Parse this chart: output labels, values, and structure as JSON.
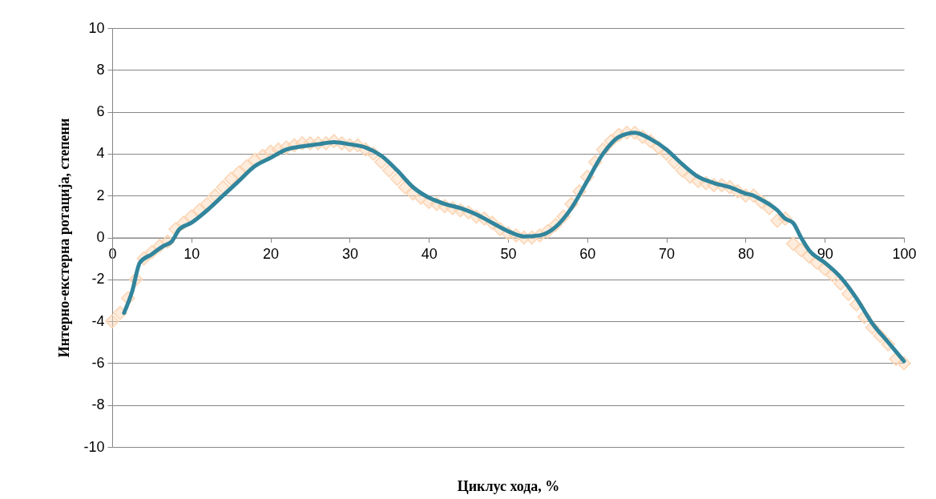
{
  "chart_data": {
    "type": "line",
    "xlabel": "Циклус хода, %",
    "ylabel": "Интерно-екстерна ротација, степени",
    "xlim": [
      0,
      100
    ],
    "xticks": [
      0,
      10,
      20,
      30,
      40,
      50,
      60,
      70,
      80,
      90,
      100
    ],
    "ylim": [
      -10,
      10
    ],
    "yticks": [
      -10,
      -8,
      -6,
      -4,
      -2,
      0,
      2,
      4,
      6,
      8,
      10
    ],
    "grid": "y",
    "marker": "diamond",
    "series": [
      {
        "type": "scatter",
        "color": "#fcd5b4",
        "x": [
          0,
          1,
          2,
          3,
          4,
          5,
          6,
          7,
          8,
          9,
          10,
          11,
          12,
          13,
          14,
          15,
          16,
          17,
          18,
          19,
          20,
          21,
          22,
          23,
          24,
          25,
          26,
          27,
          28,
          29,
          30,
          31,
          32,
          33,
          34,
          35,
          36,
          37,
          38,
          39,
          40,
          41,
          42,
          43,
          44,
          45,
          46,
          47,
          48,
          49,
          50,
          51,
          52,
          53,
          54,
          55,
          56,
          57,
          58,
          59,
          60,
          61,
          62,
          63,
          64,
          65,
          66,
          67,
          68,
          69,
          70,
          71,
          72,
          73,
          74,
          75,
          76,
          77,
          78,
          79,
          80,
          81,
          82,
          83,
          84,
          85,
          86,
          87,
          88,
          89,
          90,
          91,
          92,
          93,
          94,
          95,
          96,
          97,
          98,
          99,
          100
        ],
        "values": [
          -4.0,
          -3.6,
          -2.9,
          -2.0,
          -1.0,
          -0.7,
          -0.4,
          -0.2,
          0.4,
          0.7,
          1.0,
          1.3,
          1.6,
          2.0,
          2.4,
          2.8,
          3.1,
          3.4,
          3.7,
          3.9,
          4.1,
          4.2,
          4.3,
          4.4,
          4.5,
          4.5,
          4.5,
          4.5,
          4.6,
          4.5,
          4.4,
          4.4,
          4.2,
          4.0,
          3.6,
          3.2,
          2.8,
          2.4,
          2.1,
          1.9,
          1.7,
          1.6,
          1.5,
          1.4,
          1.3,
          1.2,
          1.0,
          0.9,
          0.7,
          0.4,
          0.2,
          0.1,
          0.0,
          0.0,
          0.1,
          0.3,
          0.6,
          1.0,
          1.6,
          2.2,
          2.9,
          3.6,
          4.2,
          4.6,
          4.9,
          5.0,
          5.0,
          4.8,
          4.6,
          4.3,
          4.0,
          3.6,
          3.2,
          2.9,
          2.7,
          2.6,
          2.5,
          2.5,
          2.4,
          2.2,
          2.0,
          2.0,
          1.7,
          1.4,
          0.8,
          0.9,
          -0.3,
          -0.6,
          -0.9,
          -1.2,
          -1.5,
          -1.8,
          -2.2,
          -2.7,
          -3.2,
          -3.8,
          -4.3,
          -4.7,
          -5.1,
          -5.8,
          -6.0
        ]
      },
      {
        "marker": "none",
        "color": "#31859c",
        "x": [
          1.5,
          2.5,
          3.5,
          5,
          6.5,
          7.5,
          8.5,
          10,
          12,
          14,
          16,
          18,
          20,
          22,
          24,
          26,
          28,
          30,
          32,
          34,
          36,
          38,
          40,
          42,
          44,
          46,
          48,
          50,
          52,
          54,
          56,
          58,
          60,
          62,
          64,
          66,
          68,
          70,
          72,
          74,
          76,
          78,
          80,
          81,
          82,
          84,
          85,
          86,
          87,
          88,
          90,
          92,
          94,
          96,
          98,
          100
        ],
        "values": [
          -3.6,
          -2.6,
          -1.2,
          -0.8,
          -0.4,
          -0.2,
          0.4,
          0.7,
          1.3,
          2.0,
          2.7,
          3.4,
          3.8,
          4.2,
          4.35,
          4.45,
          4.55,
          4.45,
          4.3,
          3.9,
          3.2,
          2.4,
          1.9,
          1.6,
          1.4,
          1.1,
          0.7,
          0.3,
          0.05,
          0.1,
          0.5,
          1.4,
          2.7,
          4.0,
          4.8,
          5.0,
          4.7,
          4.2,
          3.5,
          2.9,
          2.6,
          2.4,
          2.1,
          2.0,
          1.8,
          1.3,
          0.9,
          0.7,
          0.0,
          -0.6,
          -1.2,
          -1.9,
          -2.9,
          -4.1,
          -5.0,
          -5.9
        ]
      }
    ]
  }
}
